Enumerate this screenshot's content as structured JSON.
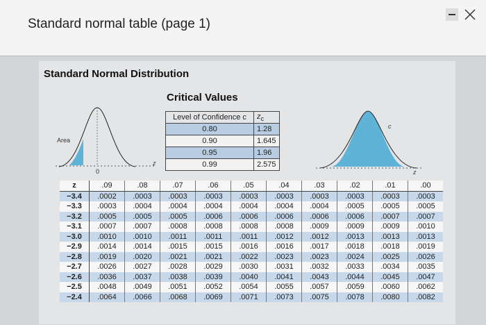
{
  "window": {
    "title": "Standard normal table (page 1)"
  },
  "panel": {
    "heading": "Standard Normal Distribution"
  },
  "critical_values": {
    "title": "Critical Values",
    "header": {
      "level": "Level of Confidence c",
      "symbol": "z",
      "subscript": "c"
    },
    "rows": [
      [
        "0.80",
        "1.28"
      ],
      [
        "0.90",
        "1.645"
      ],
      [
        "0.95",
        "1.96"
      ],
      [
        "0.99",
        "2.575"
      ]
    ]
  },
  "left_figure": {
    "area": "Area",
    "zero": "0",
    "z": "z"
  },
  "right_figure": {
    "c": "c",
    "z": "z"
  },
  "z_table": {
    "header": [
      "z",
      ".09",
      ".08",
      ".07",
      ".06",
      ".05",
      ".04",
      ".03",
      ".02",
      ".01",
      ".00"
    ],
    "rows": [
      [
        "−3.4",
        ".0002",
        ".0003",
        ".0003",
        ".0003",
        ".0003",
        ".0003",
        ".0003",
        ".0003",
        ".0003",
        ".0003"
      ],
      [
        "−3.3",
        ".0003",
        ".0004",
        ".0004",
        ".0004",
        ".0004",
        ".0004",
        ".0004",
        ".0005",
        ".0005",
        ".0005"
      ],
      [
        "−3.2",
        ".0005",
        ".0005",
        ".0005",
        ".0006",
        ".0006",
        ".0006",
        ".0006",
        ".0006",
        ".0007",
        ".0007"
      ],
      [
        "−3.1",
        ".0007",
        ".0007",
        ".0008",
        ".0008",
        ".0008",
        ".0008",
        ".0009",
        ".0009",
        ".0009",
        ".0010"
      ],
      [
        "−3.0",
        ".0010",
        ".0010",
        ".0011",
        ".0011",
        ".0011",
        ".0012",
        ".0012",
        ".0013",
        ".0013",
        ".0013"
      ],
      [
        "−2.9",
        ".0014",
        ".0014",
        ".0015",
        ".0015",
        ".0016",
        ".0016",
        ".0017",
        ".0018",
        ".0018",
        ".0019"
      ],
      [
        "−2.8",
        ".0019",
        ".0020",
        ".0021",
        ".0021",
        ".0022",
        ".0023",
        ".0023",
        ".0024",
        ".0025",
        ".0026"
      ],
      [
        "−2.7",
        ".0026",
        ".0027",
        ".0028",
        ".0029",
        ".0030",
        ".0031",
        ".0032",
        ".0033",
        ".0034",
        ".0035"
      ],
      [
        "−2.6",
        ".0036",
        ".0037",
        ".0038",
        ".0039",
        ".0040",
        ".0041",
        ".0043",
        ".0044",
        ".0045",
        ".0047"
      ],
      [
        "−2.5",
        ".0048",
        ".0049",
        ".0051",
        ".0052",
        ".0054",
        ".0055",
        ".0057",
        ".0059",
        ".0060",
        ".0062"
      ],
      [
        "−2.4",
        ".0064",
        ".0066",
        ".0068",
        ".0069",
        ".0071",
        ".0073",
        ".0075",
        ".0078",
        ".0080",
        ".0082"
      ]
    ]
  }
}
